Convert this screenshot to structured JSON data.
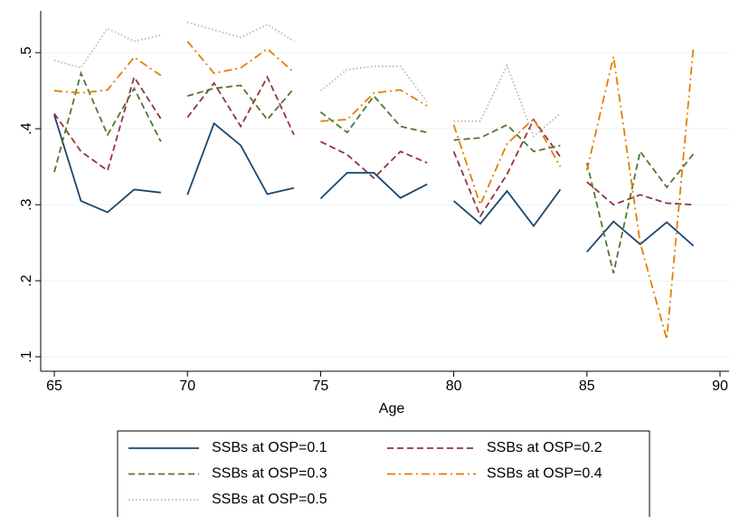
{
  "chart_data": {
    "type": "line",
    "x_label": "Age",
    "x": [
      65,
      66,
      67,
      68,
      69,
      null,
      70,
      71,
      72,
      73,
      74,
      null,
      75,
      76,
      77,
      78,
      79,
      null,
      80,
      81,
      82,
      83,
      84,
      null,
      85,
      86,
      87,
      88,
      89
    ],
    "series": [
      {
        "name": "SSBs at OSP=0.1",
        "color": "#1a476f",
        "dash": "solid",
        "values": [
          0.418,
          0.305,
          0.29,
          0.32,
          0.316,
          null,
          0.313,
          0.407,
          0.378,
          0.314,
          0.322,
          null,
          0.308,
          0.342,
          0.342,
          0.309,
          0.327,
          null,
          0.305,
          0.275,
          0.318,
          0.272,
          0.32,
          null,
          0.238,
          0.278,
          0.248,
          0.277,
          0.246
        ]
      },
      {
        "name": "SSBs at OSP=0.2",
        "color": "#90353b",
        "dash": "dashed",
        "values": [
          0.42,
          0.37,
          0.345,
          0.468,
          0.413,
          null,
          0.415,
          0.46,
          0.403,
          0.468,
          0.392,
          null,
          0.383,
          0.366,
          0.335,
          0.37,
          0.355,
          null,
          0.37,
          0.285,
          0.34,
          0.412,
          0.363,
          null,
          0.33,
          0.3,
          0.313,
          0.302,
          0.3
        ]
      },
      {
        "name": "SSBs at OSP=0.3",
        "color": "#55752f",
        "dash": "dashed",
        "values": [
          0.343,
          0.473,
          0.392,
          0.453,
          0.383,
          null,
          0.443,
          0.453,
          0.457,
          0.412,
          0.453,
          null,
          0.422,
          0.395,
          0.443,
          0.403,
          0.395,
          null,
          0.385,
          0.388,
          0.405,
          0.37,
          0.378,
          null,
          0.355,
          0.21,
          0.37,
          0.323,
          0.367
        ]
      },
      {
        "name": "SSBs at OSP=0.4",
        "color": "#e37e00",
        "dash": "dashdot",
        "values": [
          0.45,
          0.447,
          0.451,
          0.494,
          0.47,
          null,
          0.515,
          0.473,
          0.48,
          0.505,
          0.474,
          null,
          0.41,
          0.412,
          0.447,
          0.451,
          0.43,
          null,
          0.405,
          0.3,
          0.38,
          0.413,
          0.35,
          null,
          0.345,
          0.495,
          0.25,
          0.123,
          0.508
        ]
      },
      {
        "name": "SSBs at OSP=0.5",
        "color": "#b8b8b8",
        "dash": "dotted",
        "values": [
          0.49,
          0.48,
          0.532,
          0.515,
          0.523,
          null,
          0.54,
          0.53,
          0.52,
          0.537,
          0.515,
          null,
          0.45,
          0.478,
          0.482,
          0.482,
          0.435,
          null,
          0.41,
          0.41,
          0.483,
          0.39,
          0.42,
          null,
          null,
          null,
          null,
          null,
          null
        ]
      }
    ],
    "xlim": [
      64.49,
      90.34
    ],
    "ylim": [
      0.081,
      0.555
    ],
    "xticks": [
      65,
      70,
      75,
      80,
      85,
      90
    ],
    "yticks": [
      {
        "value": 0.1,
        "label": ".1"
      },
      {
        "value": 0.2,
        "label": ".2"
      },
      {
        "value": 0.3,
        "label": ".3"
      },
      {
        "value": 0.4,
        "label": ".4"
      },
      {
        "value": 0.5,
        "label": ".5"
      }
    ],
    "grid": true,
    "legend": "bottom"
  }
}
